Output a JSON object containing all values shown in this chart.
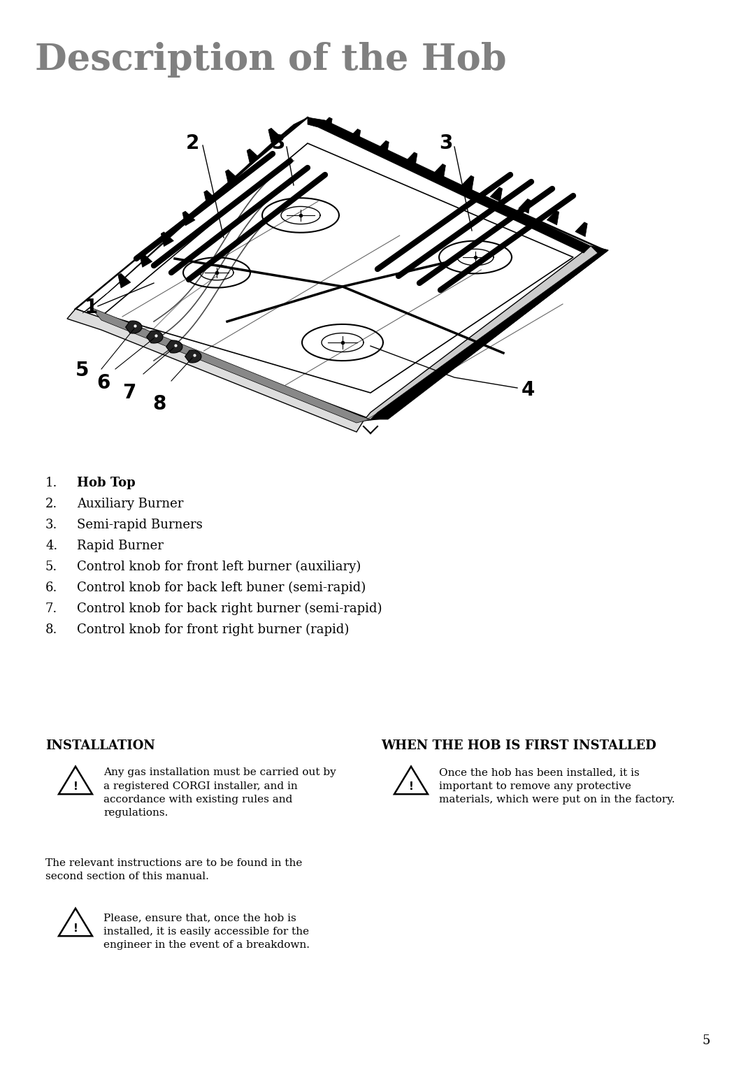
{
  "title": "Description of the Hob",
  "title_color": "#808080",
  "title_fontsize": 38,
  "bg_color": "#ffffff",
  "list_items": [
    {
      "num": "1.",
      "bold": "Hob Top",
      "rest": ""
    },
    {
      "num": "2.",
      "bold": "",
      "rest": "Auxiliary Burner"
    },
    {
      "num": "3.",
      "bold": "",
      "rest": "Semi-rapid Burners"
    },
    {
      "num": "4.",
      "bold": "",
      "rest": "Rapid Burner"
    },
    {
      "num": "5.",
      "bold": "",
      "rest": "Control knob for front left burner (auxiliary)"
    },
    {
      "num": "6.",
      "bold": "",
      "rest": "Control knob for back left buner (semi-rapid)"
    },
    {
      "num": "7.",
      "bold": "",
      "rest": "Control knob for back right burner (semi-rapid)"
    },
    {
      "num": "8.",
      "bold": "",
      "rest": "Control knob for front right burner (rapid)"
    }
  ],
  "installation_title": "INSTALLATION",
  "installation_text1": "Any gas installation must be carried out by\na registered CORGI installer, and in\naccordance with existing rules and\nregulations.",
  "installation_text2": "The relevant instructions are to be found in the\nsecond section of this manual.",
  "installation_text3": "Please, ensure that, once the hob is\ninstalled, it is easily accessible for the\nengineer in the event of a breakdown.",
  "when_title": "WHEN THE HOB IS FIRST INSTALLED",
  "when_text": "Once the hob has been installed, it is\nimportant to remove any protective\nmaterials, which were put on in the factory.",
  "page_number": "5"
}
